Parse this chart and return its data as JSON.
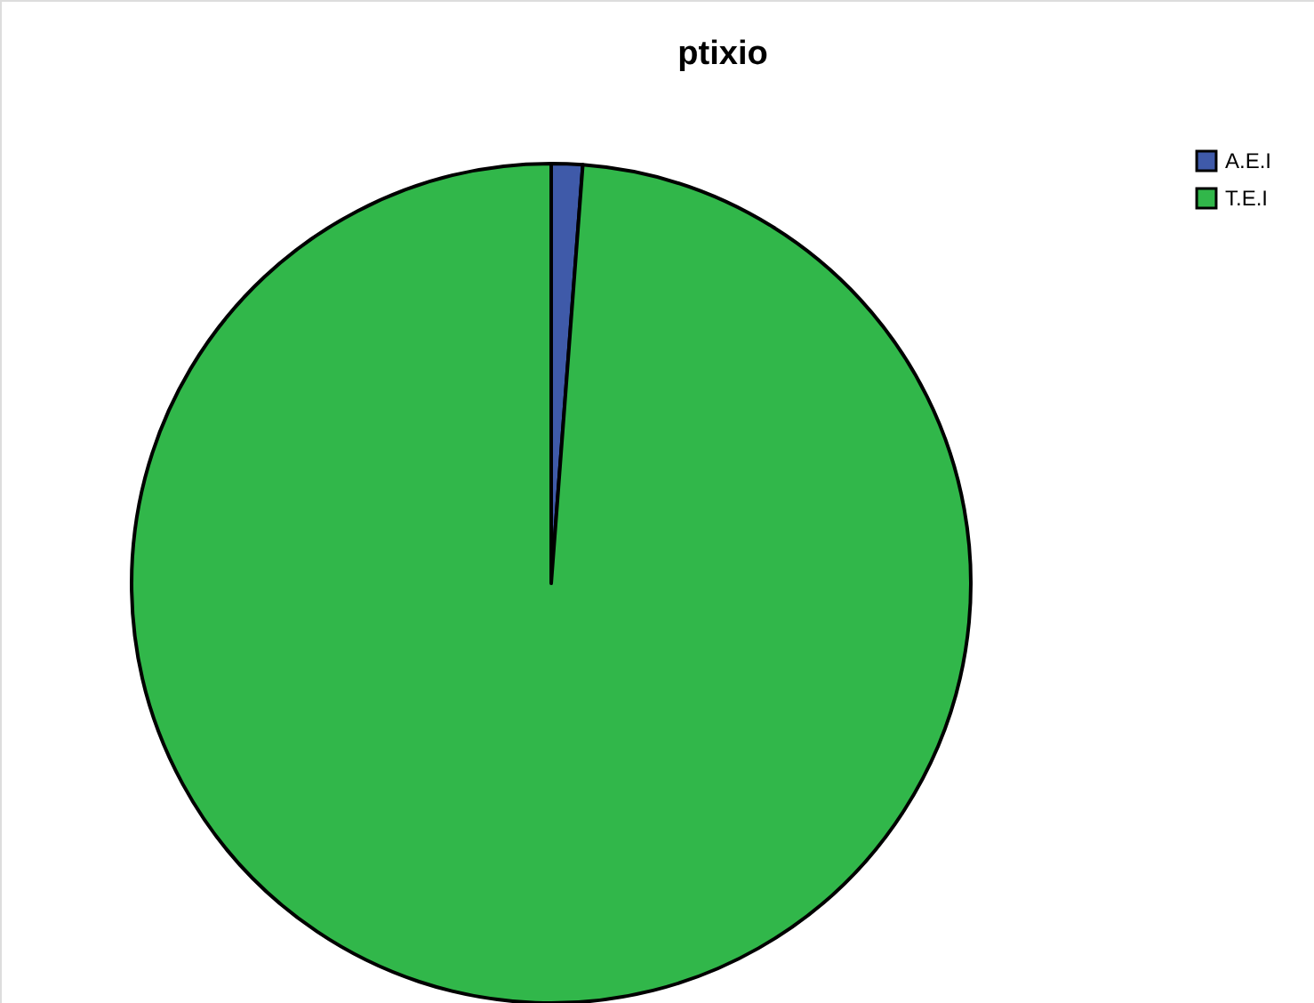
{
  "chart_data": {
    "type": "pie",
    "title": "ptixio",
    "categories": [
      "A.E.I",
      "T.E.I"
    ],
    "values": [
      1.2,
      98.8
    ],
    "colors": [
      "#3f5aa9",
      "#31b74a"
    ],
    "legend": "top right"
  }
}
